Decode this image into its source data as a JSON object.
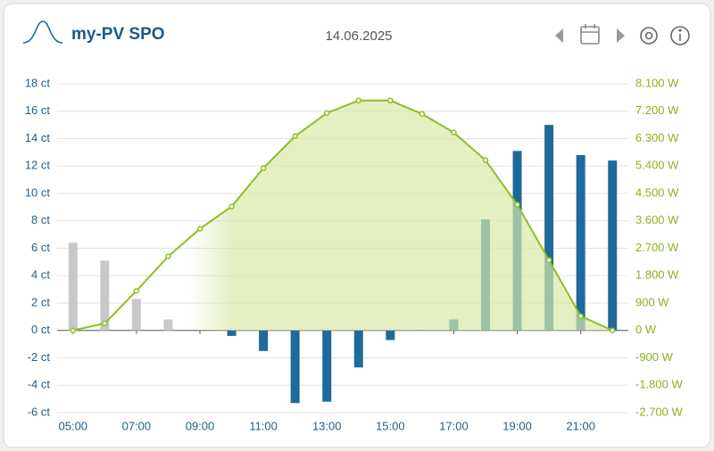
{
  "header": {
    "title": "my-PV SPO",
    "date": "14.06.2025"
  },
  "chart_data": {
    "type": "bar",
    "categories": [
      "05:00",
      null,
      "07:00",
      null,
      "09:00",
      null,
      "11:00",
      null,
      "13:00",
      null,
      "15:00",
      null,
      "17:00",
      null,
      "19:00",
      null,
      "21:00",
      null
    ],
    "series": [
      {
        "type": "bar",
        "values": [
          6.4,
          5.1,
          2.3,
          0.8,
          0,
          -0.4,
          -1.5,
          -5.3,
          -5.2,
          -2.7,
          -0.7,
          0.05,
          0.8,
          8.1,
          13.1,
          15.0,
          12.8,
          12.4
        ],
        "colors": [
          "#c8c8c8",
          "#c8c8c8",
          "#c8c8c8",
          "#c8c8c8",
          "#1f6a9a",
          "#1f6a9a",
          "#1f6a9a",
          "#1f6a9a",
          "#1f6a9a",
          "#1f6a9a",
          "#1f6a9a",
          "#1f6a9a",
          "#1f6a9a",
          "#1f6a9a",
          "#1f6a9a",
          "#1f6a9a",
          "#1f6a9a",
          "#1f6a9a"
        ]
      },
      {
        "type": "line",
        "axis": "y2",
        "color": "#8cbf26",
        "values": [
          0,
          230,
          1300,
          2430,
          3340,
          4070,
          5330,
          6380,
          7140,
          7550,
          7550,
          7110,
          6500,
          5590,
          4130,
          2310,
          470,
          0
        ]
      }
    ],
    "ylim": [
      -6,
      18
    ],
    "yticks": [
      {
        "value": -6,
        "label": "-6 ct"
      },
      {
        "value": -4,
        "label": "-4 ct"
      },
      {
        "value": -2,
        "label": "-2 ct"
      },
      {
        "value": 0,
        "label": "0 ct"
      },
      {
        "value": 2,
        "label": "2 ct"
      },
      {
        "value": 4,
        "label": "4 ct"
      },
      {
        "value": 6,
        "label": "6 ct"
      },
      {
        "value": 8,
        "label": "8 ct"
      },
      {
        "value": 10,
        "label": "10 ct"
      },
      {
        "value": 12,
        "label": "12 ct"
      },
      {
        "value": 14,
        "label": "14 ct"
      },
      {
        "value": 16,
        "label": "16 ct"
      },
      {
        "value": 18,
        "label": "18 ct"
      }
    ],
    "y2lim": [
      -2700,
      8100
    ],
    "y2ticks": [
      {
        "value": -2700,
        "label": "-2.700 W"
      },
      {
        "value": -1800,
        "label": "-1.800 W"
      },
      {
        "value": -900,
        "label": "-900 W"
      },
      {
        "value": 0,
        "label": "0 W"
      },
      {
        "value": 900,
        "label": "900 W"
      },
      {
        "value": 1800,
        "label": "1.800 W"
      },
      {
        "value": 2700,
        "label": "2.700 W"
      },
      {
        "value": 3600,
        "label": "3.600 W"
      },
      {
        "value": 4500,
        "label": "4.500 W"
      },
      {
        "value": 5400,
        "label": "5.400 W"
      },
      {
        "value": 6300,
        "label": "6.300 W"
      },
      {
        "value": 7200,
        "label": "7.200 W"
      },
      {
        "value": 8100,
        "label": "8.100 W"
      }
    ],
    "grid": true
  }
}
